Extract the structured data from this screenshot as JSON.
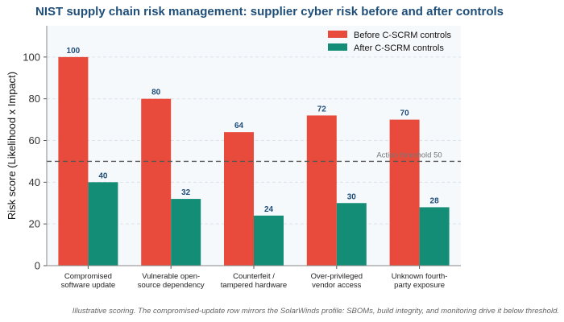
{
  "title": "NIST supply chain risk management: supplier cyber risk before and after controls",
  "footnote": "Illustrative scoring. The compromised-update row mirrors the SolarWinds profile: SBOMs, build integrity, and monitoring drive it below threshold.",
  "chart_data": {
    "type": "bar",
    "categories": [
      [
        "Compromised",
        "software update"
      ],
      [
        "Vulnerable open-",
        "source dependency"
      ],
      [
        "Counterfeit /",
        "tampered hardware"
      ],
      [
        "Over-privileged",
        "vendor access"
      ],
      [
        "Unknown fourth-",
        "party exposure"
      ]
    ],
    "series": [
      {
        "name": "Before C-SCRM controls",
        "values": [
          100,
          80,
          64,
          72,
          70
        ],
        "color": "#e84b3c"
      },
      {
        "name": "After C-SCRM controls",
        "values": [
          40,
          32,
          24,
          30,
          28
        ],
        "color": "#138d75"
      }
    ],
    "value_label_color": "#1f4e79",
    "ylabel": "Risk score (Likelihood x Impact)",
    "ylim": [
      0,
      115
    ],
    "yticks": [
      0,
      20,
      40,
      60,
      80,
      100
    ],
    "grid": "horizontal dashed",
    "legend": "top-right",
    "threshold": {
      "value": 50,
      "label": "Action threshold 50"
    }
  }
}
